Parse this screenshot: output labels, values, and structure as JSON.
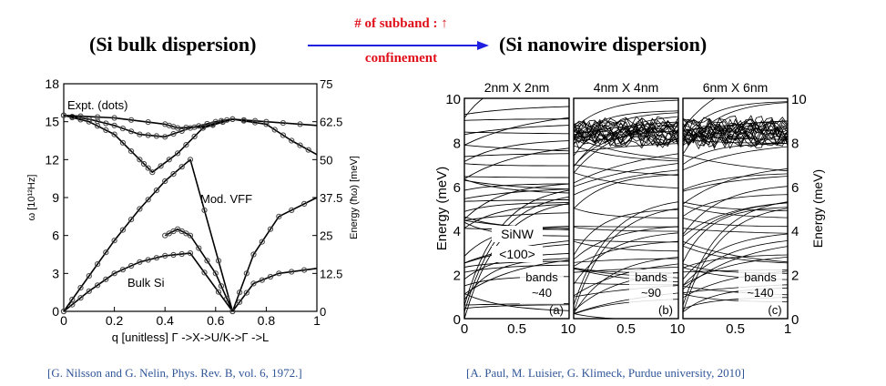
{
  "header": {
    "left_title": "(Si bulk dispersion)",
    "right_title": "(Si nanowire dispersion)",
    "arrow_top": "# of subband : ↑",
    "arrow_bottom": "confinement",
    "arrow_color": "#2020e0",
    "text_color": "#e0101a"
  },
  "citations": {
    "left": "[G. Nilsson and G. Nelin, Phys. Rev. B, vol. 6, 1972.]",
    "right": "[A. Paul, M. Luisier, G. Klimeck, Purdue university, 2010]"
  },
  "chart_data": [
    {
      "type": "line",
      "xlabel": "q [unitless] Γ ->X->U/K->Γ ->L",
      "ylabel": "ω [10¹²Hz]",
      "ylabel_right": "Energy (ħω) [meV]",
      "xlim": [
        0,
        1
      ],
      "ylim": [
        0,
        18
      ],
      "ylim_right": [
        0,
        75
      ],
      "x_ticks": [
        "0",
        "0.2",
        "0.4",
        "0.6",
        "0.8",
        "1"
      ],
      "y_ticks": [
        "0",
        "3",
        "6",
        "9",
        "12",
        "15",
        "18"
      ],
      "y_ticks_right": [
        "0",
        "12.5",
        "25",
        "37.5",
        "50",
        "62.5",
        "75"
      ],
      "annotations": [
        "Expt. (dots)",
        "Mod. VFF",
        "Bulk Si"
      ],
      "series": [
        {
          "x": [
            0,
            0.1,
            0.2,
            0.3,
            0.4,
            0.5,
            0.667
          ],
          "y": [
            0,
            1.6,
            3.0,
            3.9,
            4.4,
            4.6,
            0
          ]
        },
        {
          "x": [
            0,
            0.1,
            0.2,
            0.3,
            0.4,
            0.5,
            0.667
          ],
          "y": [
            0,
            2.8,
            5.6,
            8.1,
            10.3,
            12.0,
            0
          ]
        },
        {
          "x": [
            0,
            0.1,
            0.2,
            0.3,
            0.4,
            0.5,
            0.6,
            0.667
          ],
          "y": [
            15.5,
            15.2,
            14.7,
            14.0,
            13.8,
            14.5,
            15.0,
            15.2
          ]
        },
        {
          "x": [
            0,
            0.1,
            0.2,
            0.3,
            0.35,
            0.45,
            0.55,
            0.667
          ],
          "y": [
            15.5,
            15.0,
            14.0,
            12.0,
            11.0,
            12.5,
            14.5,
            15.2
          ]
        },
        {
          "x": [
            0,
            0.2,
            0.4,
            0.45,
            0.55,
            0.667
          ],
          "y": [
            15.5,
            15.3,
            14.8,
            14.5,
            14.6,
            15.2
          ]
        },
        {
          "x": [
            0.4,
            0.45,
            0.5,
            0.6,
            0.667
          ],
          "y": [
            6.0,
            6.5,
            6.0,
            3.0,
            0
          ]
        },
        {
          "x": [
            0.667,
            0.75,
            0.85,
            1.0
          ],
          "y": [
            0,
            4.5,
            7.5,
            9.0
          ]
        },
        {
          "x": [
            0.667,
            0.75,
            0.85,
            1.0
          ],
          "y": [
            0,
            2.2,
            3.0,
            3.4
          ]
        },
        {
          "x": [
            0.667,
            0.8,
            1.0
          ],
          "y": [
            15.2,
            15.0,
            14.7
          ]
        },
        {
          "x": [
            0.667,
            0.8,
            0.9,
            1.0
          ],
          "y": [
            15.2,
            14.8,
            13.5,
            12.4
          ]
        }
      ]
    },
    {
      "type": "line",
      "ylabel": "Energy (meV)",
      "ylabel_right": "Energy (meV)",
      "ylim": [
        0,
        10
      ],
      "panels": [
        {
          "title": "2nm X 2nm",
          "x_ticks": [
            "0",
            "0.5",
            "1"
          ],
          "label_lines": [
            "SiNW",
            "<100>"
          ],
          "bands_label": "bands",
          "bands_count": "~40",
          "panel_tag": "(a)",
          "num_bands": 40
        },
        {
          "title": "4nm X 4nm",
          "x_ticks": [
            "0",
            "0.5",
            "1"
          ],
          "bands_label": "bands",
          "bands_count": "~90",
          "panel_tag": "(b)",
          "num_bands": 90
        },
        {
          "title": "6nm X 6nm",
          "x_ticks": [
            "0",
            "0.5",
            "1"
          ],
          "bands_label": "bands",
          "bands_count": "~140",
          "panel_tag": "(c)",
          "num_bands": 140
        }
      ],
      "y_ticks": [
        "0",
        "2",
        "4",
        "6",
        "8",
        "10"
      ],
      "y_ticks_right": [
        "0",
        "2",
        "4",
        "6",
        "8",
        "10"
      ]
    }
  ]
}
